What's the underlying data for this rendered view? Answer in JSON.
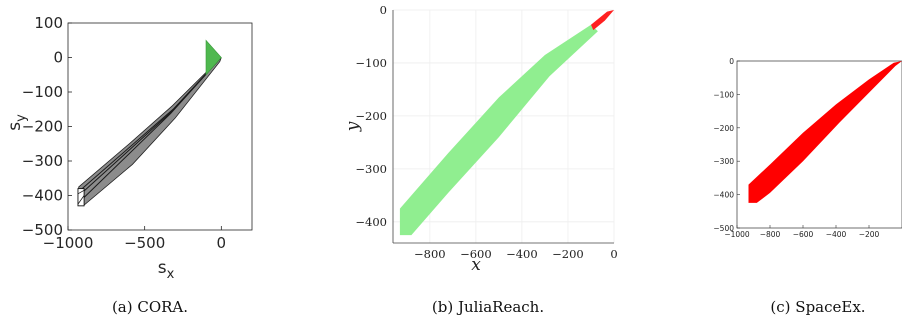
{
  "figure": {
    "captions": [
      "(a) CORA.",
      "(b) JuliaReach.",
      "(c) SpaceEx."
    ]
  },
  "chart_data": [
    {
      "type": "area",
      "tool": "CORA",
      "xlabel": "s",
      "xlabel_sub": "x",
      "ylabel": "s",
      "ylabel_sub": "y",
      "xlim": [
        -1000,
        200
      ],
      "ylim": [
        -500,
        100
      ],
      "xticks": [
        -1000,
        -500,
        0
      ],
      "yticks": [
        100,
        0,
        -100,
        -200,
        -300,
        -400,
        -500
      ],
      "grid": false,
      "colors": {
        "body": "#8c8c8c",
        "outline": "#222222",
        "start": "#4fb84f"
      },
      "regions": [
        {
          "name": "",
          "role": "initial set",
          "polygon": [
            [
              -100,
              50
            ],
            [
              0,
              0
            ],
            [
              -100,
              -50
            ]
          ]
        },
        {
          "name": "",
          "role": "reach tube",
          "polygon": [
            [
              -930,
              -375
            ],
            [
              -600,
              -250
            ],
            [
              -320,
              -140
            ],
            [
              -20,
              -8
            ],
            [
              0,
              0
            ],
            [
              -10,
              -12
            ],
            [
              -300,
              -175
            ],
            [
              -580,
              -310
            ],
            [
              -900,
              -430
            ],
            [
              -930,
              -420
            ]
          ]
        }
      ],
      "box": {
        "x": [
          -935,
          -895
        ],
        "y": [
          -430,
          -380
        ]
      }
    },
    {
      "type": "area",
      "tool": "JuliaReach",
      "xlabel": "x",
      "ylabel": "y",
      "xlim": [
        -960,
        0
      ],
      "ylim": [
        -440,
        0
      ],
      "xticks": [
        -800,
        -600,
        -400,
        -200,
        0
      ],
      "yticks": [
        0,
        -100,
        -200,
        -300,
        -400
      ],
      "grid": true,
      "colors": {
        "tube": "#90ee90",
        "end": "#ff2020"
      },
      "regions": [
        {
          "name": "",
          "role": "reach tube",
          "polygon": [
            [
              -930,
              -375
            ],
            [
              -720,
              -270
            ],
            [
              -500,
              -165
            ],
            [
              -300,
              -85
            ],
            [
              -100,
              -28
            ],
            [
              -70,
              -40
            ],
            [
              -280,
              -125
            ],
            [
              -500,
              -240
            ],
            [
              -720,
              -345
            ],
            [
              -880,
              -425
            ],
            [
              -930,
              -425
            ]
          ]
        },
        {
          "name": "",
          "role": "near origin",
          "polygon": [
            [
              -100,
              -28
            ],
            [
              -30,
              -3
            ],
            [
              0,
              0
            ],
            [
              -40,
              -20
            ],
            [
              -90,
              -38
            ]
          ]
        }
      ]
    },
    {
      "type": "area",
      "tool": "SpaceEx",
      "xlim": [
        -1000,
        0
      ],
      "ylim": [
        -500,
        0
      ],
      "xticks": [
        -1000,
        -800,
        -600,
        -400,
        -200
      ],
      "yticks": [
        0,
        -100,
        -200,
        -300,
        -400,
        -500
      ],
      "grid": false,
      "colors": {
        "tube": "#ff0000"
      },
      "regions": [
        {
          "name": "",
          "role": "reach tube",
          "polygon": [
            [
              -930,
              -370
            ],
            [
              -800,
              -310
            ],
            [
              -600,
              -215
            ],
            [
              -400,
              -130
            ],
            [
              -200,
              -55
            ],
            [
              -50,
              -5
            ],
            [
              0,
              0
            ],
            [
              -40,
              -15
            ],
            [
              -180,
              -85
            ],
            [
              -380,
              -185
            ],
            [
              -600,
              -300
            ],
            [
              -800,
              -395
            ],
            [
              -880,
              -425
            ],
            [
              -930,
              -425
            ]
          ]
        }
      ]
    }
  ]
}
